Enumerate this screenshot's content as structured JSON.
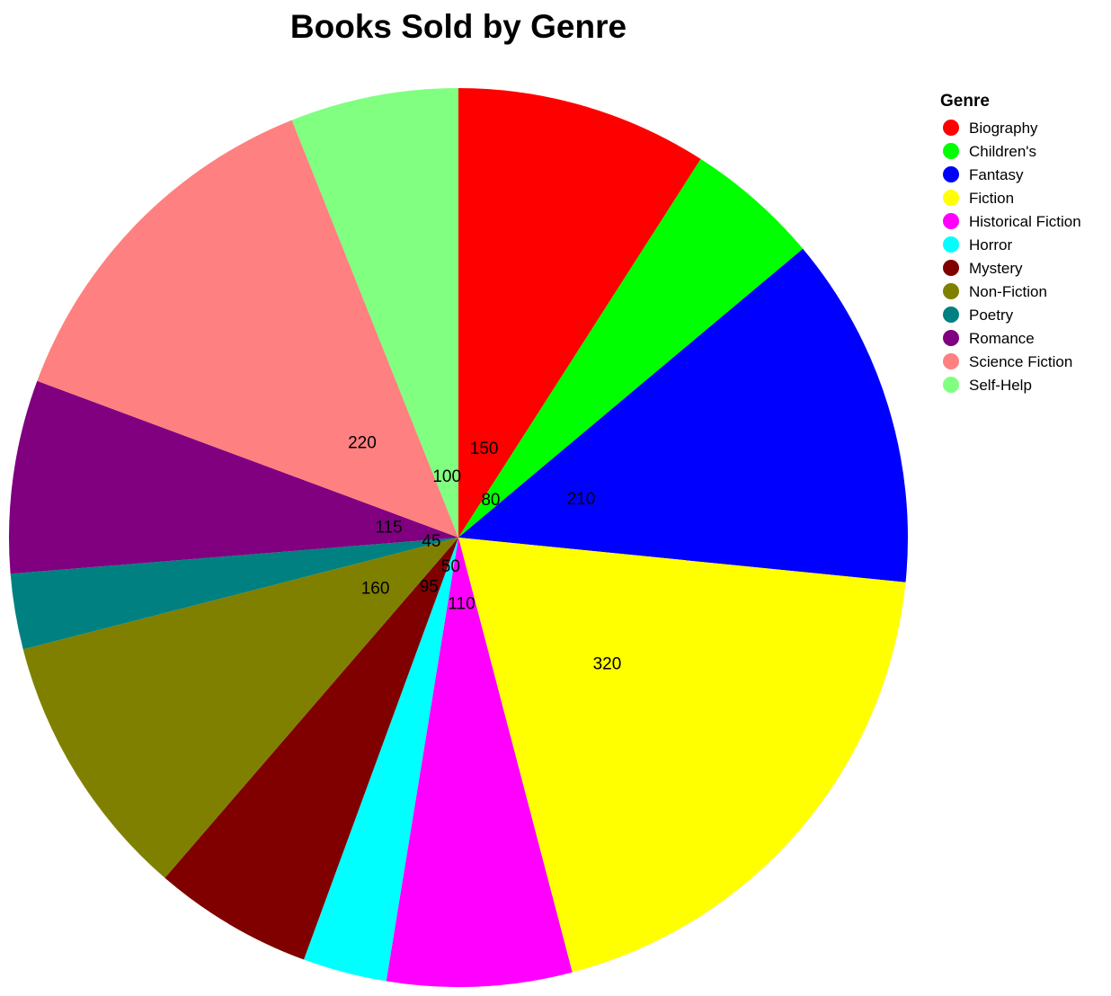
{
  "chart_data": {
    "type": "pie",
    "title": "Books Sold by Genre",
    "legend_title": "Genre",
    "legend_position": "right",
    "categories": [
      "Biography",
      "Children's",
      "Fantasy",
      "Fiction",
      "Historical Fiction",
      "Horror",
      "Mystery",
      "Non-Fiction",
      "Poetry",
      "Romance",
      "Science Fiction",
      "Self-Help"
    ],
    "colors": [
      "#ff0000",
      "#00ff00",
      "#0000ff",
      "#ffff00",
      "#ff00ff",
      "#00ffff",
      "#800000",
      "#808000",
      "#008080",
      "#800080",
      "#ff8080",
      "#80ff80"
    ],
    "slice_order": [
      "Biography",
      "Children's",
      "Fantasy",
      "Fiction",
      "Historical Fiction",
      "Horror",
      "Mystery",
      "Non-Fiction",
      "Poetry",
      "Romance",
      "Science Fiction",
      "Self-Help"
    ],
    "values": [
      150,
      80,
      210,
      320,
      110,
      50,
      95,
      160,
      45,
      115,
      220,
      100
    ]
  }
}
